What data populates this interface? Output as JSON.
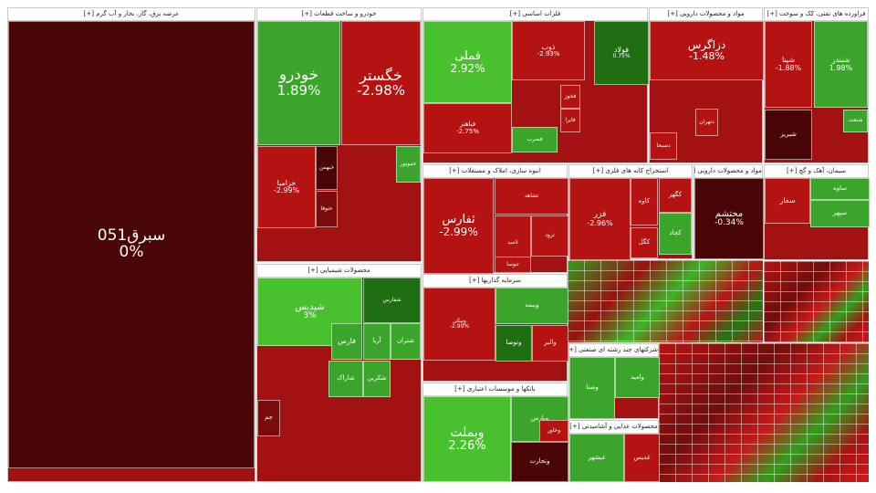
{
  "colors": {
    "dark_red": "#4a0506",
    "red": "#b51212",
    "bright_red": "#e01c1c",
    "deep_red": "#7a0a0c",
    "green": "#3aa52a",
    "bright_green": "#49c12f",
    "dark_green": "#1f6e12"
  },
  "chart_data": {
    "type": "treemap",
    "sectors": [
      {
        "name": "عرضه برق، گاز، بخار و آب گرم [+]",
        "tiles": [
          {
            "label": "سبرق051",
            "change": "0%",
            "color": "dark_red"
          }
        ]
      },
      {
        "name": "خودرو و ساخت قطعات [+]",
        "tiles": [
          {
            "label": "خودرو",
            "change": "1.89%",
            "color": "green"
          },
          {
            "label": "خگستر",
            "change": "-2.98%",
            "color": "red"
          },
          {
            "label": "خزامیا",
            "change": "-2.99%",
            "color": "red"
          },
          {
            "label": "ختوقا",
            "change": "",
            "color": "deep_red"
          },
          {
            "label": "خبهمن",
            "change": "",
            "color": "dark_red"
          },
          {
            "label": "خموتور",
            "change": "",
            "color": "green"
          }
        ]
      },
      {
        "name": "محصولات شیمیایی [+]",
        "tiles": [
          {
            "label": "شیدیس",
            "change": "3%",
            "color": "bright_green"
          },
          {
            "label": "شفارس",
            "change": "",
            "color": "dark_green"
          },
          {
            "label": "فارس",
            "change": "",
            "color": "green"
          },
          {
            "label": "شکربن",
            "change": "",
            "color": "green"
          },
          {
            "label": "شاراک",
            "change": "",
            "color": "green"
          },
          {
            "label": "آریا",
            "change": "",
            "color": "green"
          },
          {
            "label": "جم",
            "change": "",
            "color": "deep_red"
          },
          {
            "label": "شتران",
            "change": "",
            "color": "green"
          }
        ]
      },
      {
        "name": "فلزات اساسی [+]",
        "tiles": [
          {
            "label": "فملی",
            "change": "2.92%",
            "color": "bright_green"
          },
          {
            "label": "فولاد",
            "change": "0.75%",
            "color": "dark_green"
          },
          {
            "label": "ذوب",
            "change": "-2.93%",
            "color": "red"
          },
          {
            "label": "فباهنر",
            "change": "-2.75%",
            "color": "red"
          },
          {
            "label": "فخوز",
            "change": "",
            "color": "red"
          },
          {
            "label": "فایرا",
            "change": "",
            "color": "red"
          },
          {
            "label": "فسرب",
            "change": "",
            "color": "green"
          }
        ]
      },
      {
        "name": "مواد و محصولات دارویی [+]",
        "tiles": [
          {
            "label": "دزاگرس",
            "change": "-1.48%",
            "color": "red"
          },
          {
            "label": "دتهران",
            "change": "",
            "color": "red"
          },
          {
            "label": "دسبحا",
            "change": "",
            "color": "red"
          }
        ]
      },
      {
        "name": "فراورده های نفتی، کک و سوخت [+]",
        "tiles": [
          {
            "label": "شپنا",
            "change": "-1.88%",
            "color": "red"
          },
          {
            "label": "شبندر",
            "change": "1.98%",
            "color": "green"
          },
          {
            "label": "شبریز",
            "change": "",
            "color": "dark_red"
          },
          {
            "label": "شنفت",
            "change": "",
            "color": "green"
          }
        ]
      },
      {
        "name": "انبوه سازی، املاک و مستغلات [+]",
        "tiles": [
          {
            "label": "ثفارس",
            "change": "-2.99%",
            "color": "red"
          },
          {
            "label": "ثشاهد",
            "change": "",
            "color": "red"
          },
          {
            "label": "ثامید",
            "change": "",
            "color": "red"
          },
          {
            "label": "ثرود",
            "change": "",
            "color": "red"
          },
          {
            "label": "ثنوسا",
            "change": "",
            "color": "red"
          }
        ]
      },
      {
        "name": "استخراج کانه های فلزی [+]",
        "tiles": [
          {
            "label": "فزر",
            "change": "-2.96%",
            "color": "red"
          },
          {
            "label": "کگل",
            "change": "",
            "color": "red"
          },
          {
            "label": "کاوه",
            "change": "",
            "color": "red"
          },
          {
            "label": "کچاد",
            "change": "",
            "color": "green"
          },
          {
            "label": "کگهر",
            "change": "",
            "color": "red"
          }
        ]
      },
      {
        "name": "سیمان، آهک و گچ [+]",
        "tiles": [
          {
            "label": "سفار",
            "change": "",
            "color": "red"
          },
          {
            "label": "ساوه",
            "change": "",
            "color": "green"
          },
          {
            "label": "سپهر",
            "change": "",
            "color": "green"
          }
        ]
      },
      {
        "name": "مواد و محصولات دارویی [+]",
        "tiles": [
          {
            "label": "محتشم",
            "change": "-0.34%",
            "color": "dark_red"
          }
        ]
      },
      {
        "name": "سرمایه گذاریها [+]",
        "tiles": [
          {
            "label": "ونیکی",
            "change": "-2.99%",
            "color": "red"
          },
          {
            "label": "وبیمه",
            "change": "",
            "color": "green"
          },
          {
            "label": "وتوصا",
            "change": "",
            "color": "dark_green"
          },
          {
            "label": "والبر",
            "change": "",
            "color": "red"
          }
        ]
      },
      {
        "name": "بانکها و موسسات اعتباری [+]",
        "tiles": [
          {
            "label": "وبملت",
            "change": "2.26%",
            "color": "bright_green"
          },
          {
            "label": "وپارس",
            "change": "",
            "color": "green"
          },
          {
            "label": "وتجارت",
            "change": "",
            "color": "dark_red"
          },
          {
            "label": "وخاور",
            "change": "",
            "color": "red"
          }
        ]
      },
      {
        "name": "شرکتهای چند رشته ای صنعتی [+]",
        "tiles": [
          {
            "label": "وصنا",
            "change": "",
            "color": "green"
          },
          {
            "label": "وامید",
            "change": "",
            "color": "green"
          }
        ]
      },
      {
        "name": "محصولات غذایی و آشامیدنی [+]",
        "tiles": [
          {
            "label": "غبشهر",
            "change": "",
            "color": "green"
          },
          {
            "label": "غدیس",
            "change": "",
            "color": "red"
          }
        ]
      }
    ]
  }
}
